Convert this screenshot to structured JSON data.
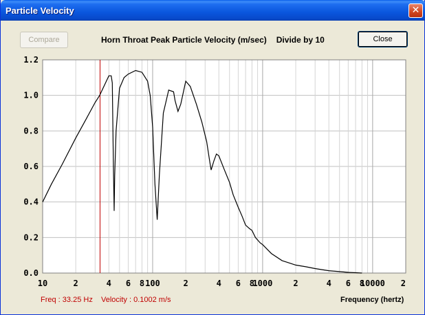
{
  "window": {
    "title": "Particle Velocity",
    "close_glyph": "✕"
  },
  "toolbar": {
    "compare_label": "Compare",
    "heading": "Horn Throat Peak Particle Velocity (m/sec)",
    "divide_note": "Divide by 10",
    "close_label": "Close"
  },
  "status": {
    "freq_readout": "Freq : 33.25 Hz",
    "velocity_readout": "Velocity : 0.1002 m/s",
    "x_unit_label": "Frequency (hertz)"
  },
  "colors": {
    "cursor": "#C00000",
    "grid": "#C0C0C0",
    "curve": "#000000",
    "plot_bg": "#FFFFFF"
  },
  "chart_data": {
    "type": "line",
    "title": "Horn Throat Peak Particle Velocity (m/sec)",
    "xlabel": "Frequency (hertz)",
    "ylabel": "",
    "x_scale": "log",
    "xlim": [
      10,
      20000
    ],
    "ylim": [
      0,
      1.2
    ],
    "grid": true,
    "y_ticks": [
      "0.0",
      "0.2",
      "0.4",
      "0.6",
      "0.8",
      "1.0",
      "1.2"
    ],
    "y_tick_values": [
      0,
      0.2,
      0.4,
      0.6,
      0.8,
      1.0,
      1.2
    ],
    "x_ticks": [
      {
        "v": 10,
        "label": "10"
      },
      {
        "v": 20,
        "label": "2"
      },
      {
        "v": 40,
        "label": "4"
      },
      {
        "v": 60,
        "label": "6"
      },
      {
        "v": 80,
        "label": "8"
      },
      {
        "v": 100,
        "label": "100"
      },
      {
        "v": 200,
        "label": "2"
      },
      {
        "v": 400,
        "label": "4"
      },
      {
        "v": 600,
        "label": "6"
      },
      {
        "v": 800,
        "label": "8"
      },
      {
        "v": 1000,
        "label": "1000"
      },
      {
        "v": 2000,
        "label": "2"
      },
      {
        "v": 4000,
        "label": "4"
      },
      {
        "v": 6000,
        "label": "6"
      },
      {
        "v": 8000,
        "label": "8"
      },
      {
        "v": 10000,
        "label": "10000"
      },
      {
        "v": 20000,
        "label": "2"
      }
    ],
    "cursor_x": 33.25,
    "series": [
      {
        "x": [
          10,
          12,
          15,
          20,
          25,
          30,
          33,
          36,
          40,
          42,
          43,
          44,
          44.7,
          45.2,
          46.5,
          50,
          55,
          60,
          70,
          80,
          90,
          95,
          100,
          105,
          110,
          115,
          125,
          140,
          155,
          160,
          170,
          180,
          200,
          220,
          250,
          280,
          310,
          330,
          340,
          360,
          380,
          400,
          450,
          500,
          540,
          600,
          650,
          700,
          760,
          800,
          860,
          950,
          1000,
          1200,
          1500,
          2000,
          2500,
          3000,
          4000,
          5000,
          6000,
          7000,
          8000
        ],
        "y": [
          0.4,
          0.5,
          0.61,
          0.76,
          0.87,
          0.96,
          1.0,
          1.05,
          1.11,
          1.11,
          1.07,
          0.6,
          0.35,
          0.55,
          0.8,
          1.04,
          1.1,
          1.12,
          1.14,
          1.13,
          1.08,
          1.0,
          0.82,
          0.5,
          0.3,
          0.55,
          0.9,
          1.03,
          1.02,
          0.97,
          0.91,
          0.95,
          1.08,
          1.05,
          0.95,
          0.85,
          0.74,
          0.63,
          0.58,
          0.63,
          0.67,
          0.66,
          0.58,
          0.51,
          0.44,
          0.37,
          0.32,
          0.27,
          0.25,
          0.24,
          0.2,
          0.17,
          0.16,
          0.11,
          0.07,
          0.045,
          0.035,
          0.025,
          0.013,
          0.008,
          0.004,
          0.002,
          0.0
        ]
      }
    ]
  }
}
